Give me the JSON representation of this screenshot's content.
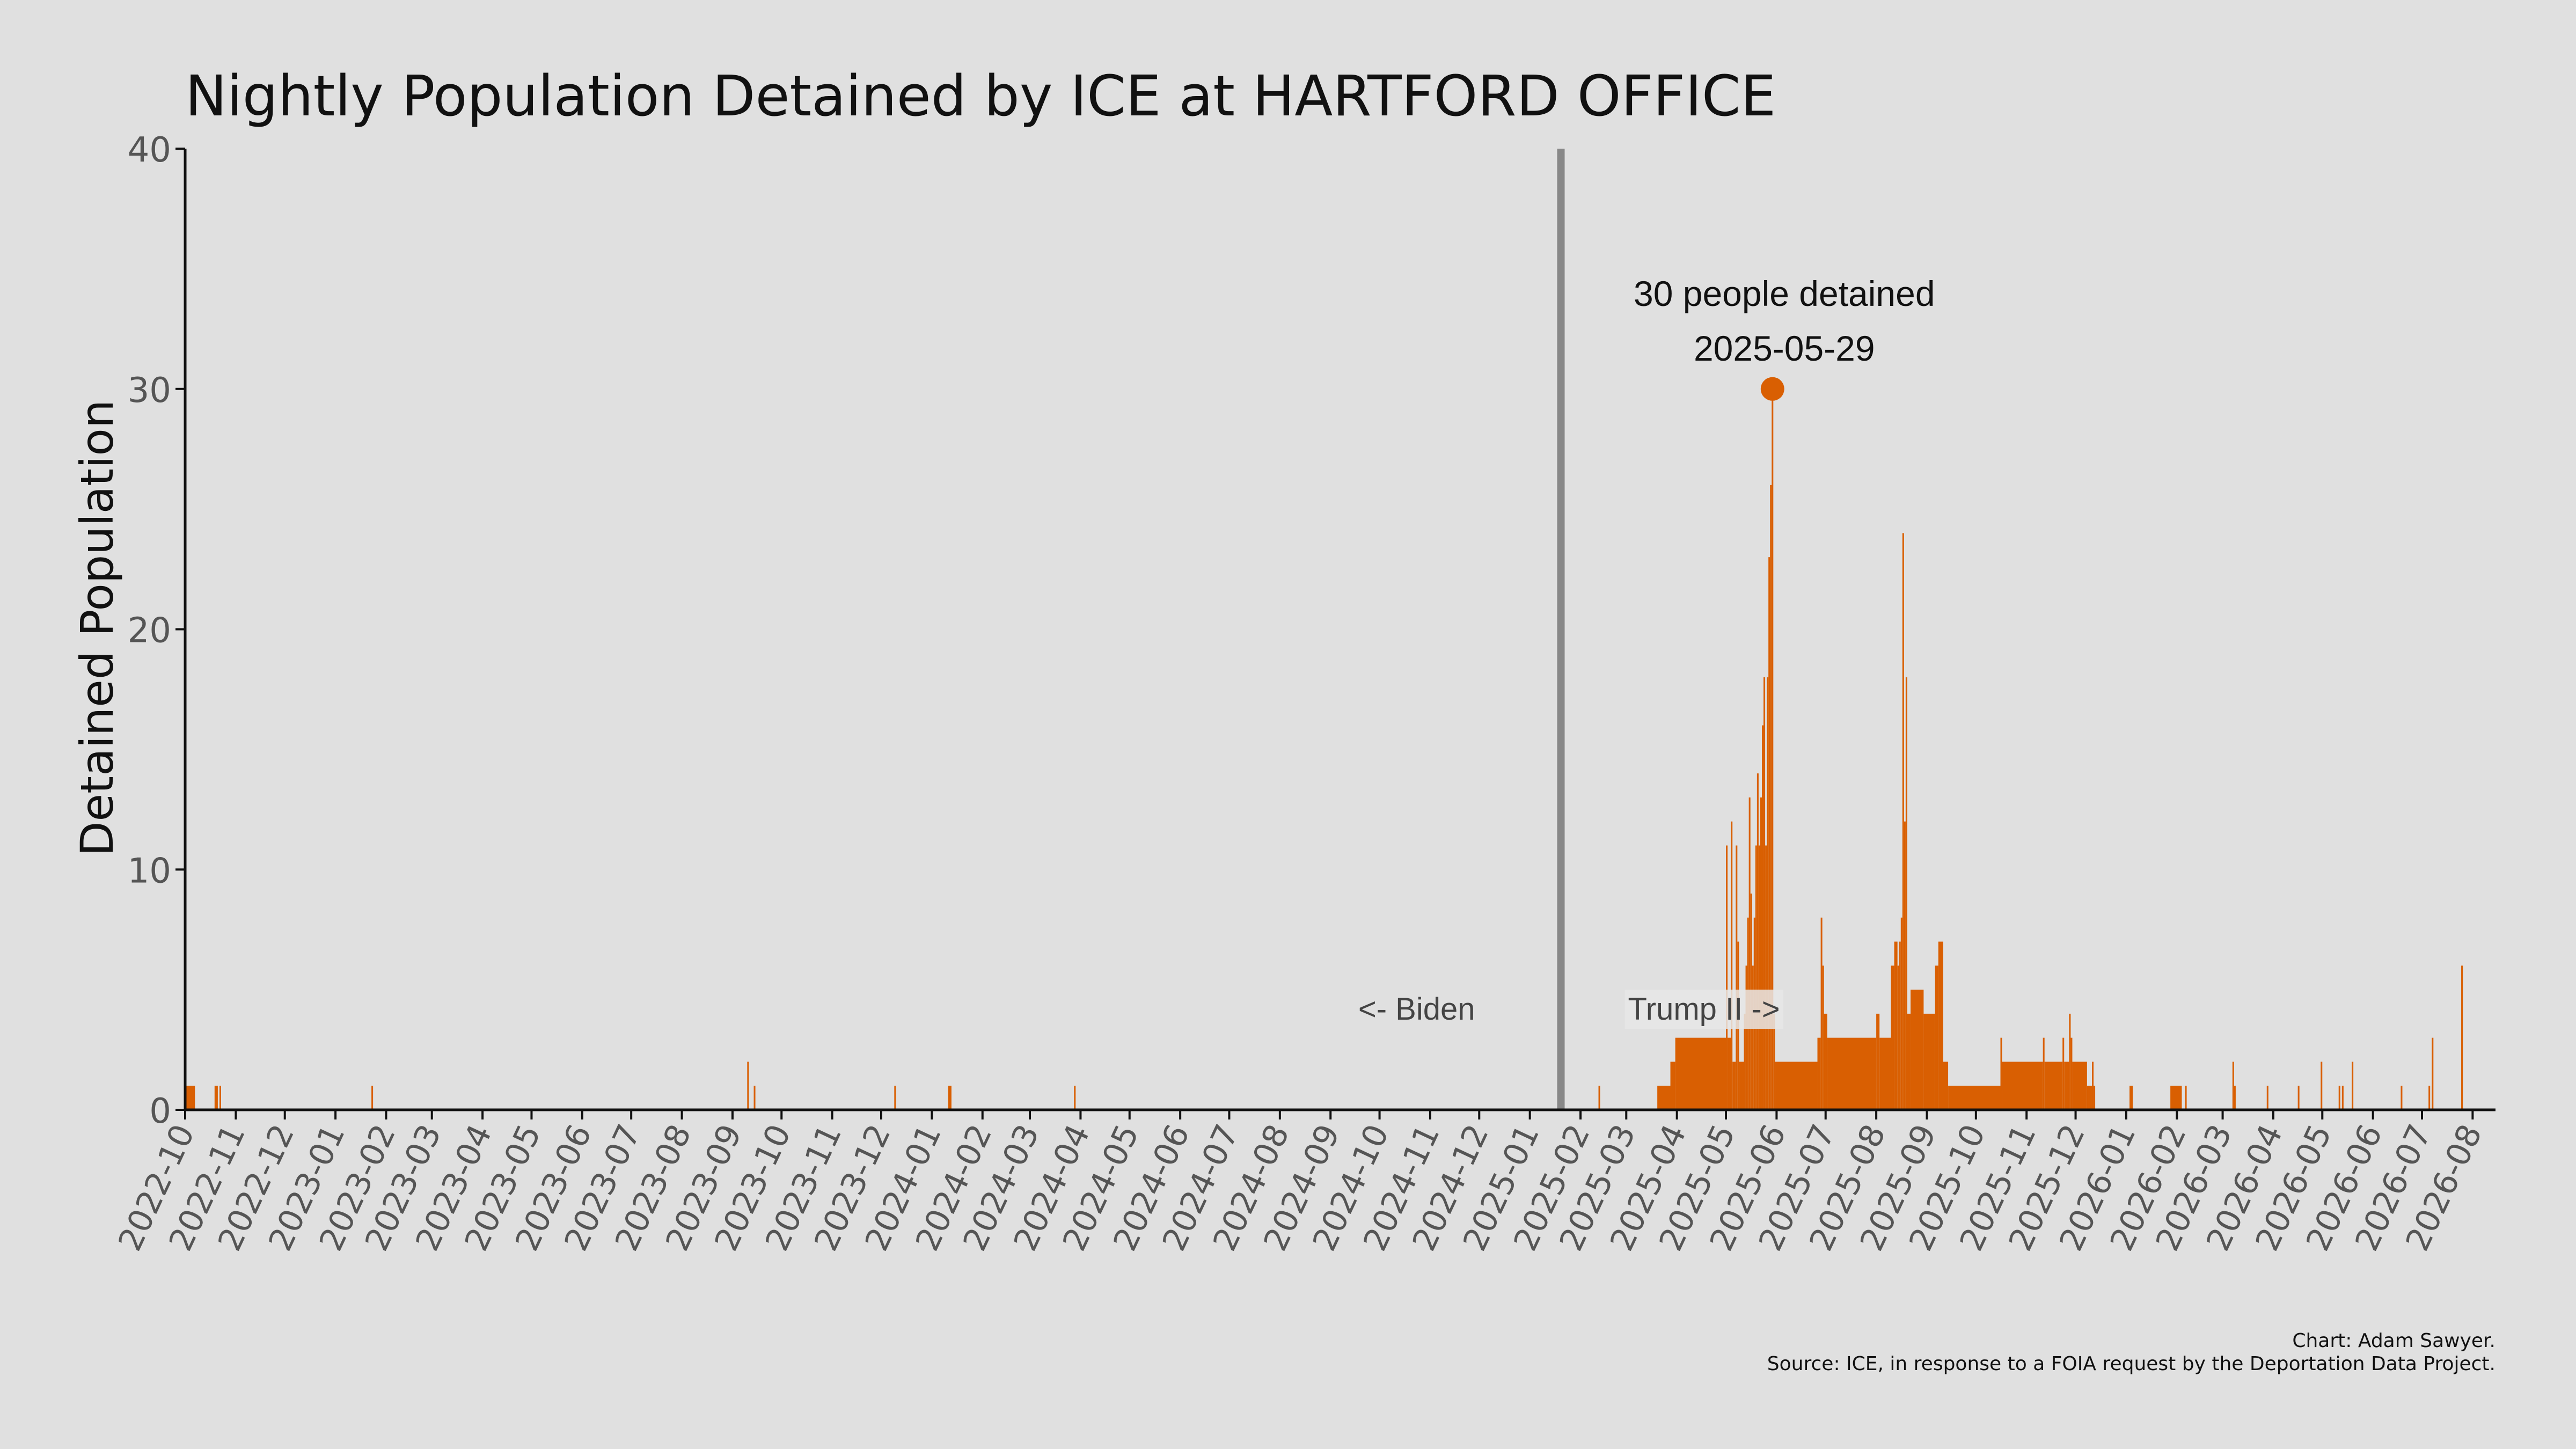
{
  "chart_data": {
    "type": "bar",
    "title": "Nightly Population Detained by ICE at HARTFORD OFFICE",
    "xlabel": "",
    "ylabel": "Detained Population",
    "ylim": [
      0,
      40
    ],
    "yticks": [
      "0",
      "10",
      "20",
      "30",
      "40"
    ],
    "xlim": [
      "2022-10-01",
      "2026-08-15"
    ],
    "xtick_labels": [
      "2022-10",
      "2022-11",
      "2022-12",
      "2023-01",
      "2023-02",
      "2023-03",
      "2023-04",
      "2023-05",
      "2023-06",
      "2023-07",
      "2023-08",
      "2023-09",
      "2023-10",
      "2023-11",
      "2023-12",
      "2024-01",
      "2024-02",
      "2024-03",
      "2024-04",
      "2024-05",
      "2024-06",
      "2024-07",
      "2024-08",
      "2024-09",
      "2024-10",
      "2024-11",
      "2024-12",
      "2025-01",
      "2025-02",
      "2025-03",
      "2025-04",
      "2025-05",
      "2025-06",
      "2025-07",
      "2025-08",
      "2025-09",
      "2025-10",
      "2025-11",
      "2025-12",
      "2026-01",
      "2026-02",
      "2026-03",
      "2026-04",
      "2026-05",
      "2026-06",
      "2026-07",
      "2026-08"
    ],
    "series": [
      {
        "color": "#d95f02",
        "segments": [
          {
            "start": "2022-10-01",
            "end": "2022-10-06",
            "value": 1
          },
          {
            "start": "2022-10-19",
            "end": "2022-10-20",
            "value": 1
          },
          {
            "start": "2022-10-22",
            "end": "2022-10-22",
            "value": 1
          },
          {
            "start": "2023-01-23",
            "end": "2023-01-23",
            "value": 1
          },
          {
            "start": "2023-09-10",
            "end": "2023-09-10",
            "value": 2
          },
          {
            "start": "2023-09-14",
            "end": "2023-09-14",
            "value": 1
          },
          {
            "start": "2023-12-09",
            "end": "2023-12-09",
            "value": 1
          },
          {
            "start": "2024-01-11",
            "end": "2024-01-12",
            "value": 1
          },
          {
            "start": "2024-03-28",
            "end": "2024-03-28",
            "value": 1
          },
          {
            "start": "2025-02-12",
            "end": "2025-02-12",
            "value": 1
          },
          {
            "start": "2025-03-20",
            "end": "2025-03-27",
            "value": 1
          },
          {
            "start": "2025-03-28",
            "end": "2025-03-30",
            "value": 2
          },
          {
            "start": "2025-03-31",
            "end": "2025-04-30",
            "value": 3
          },
          {
            "start": "2025-05-01",
            "end": "2025-05-01",
            "value": 11
          },
          {
            "start": "2025-05-02",
            "end": "2025-05-03",
            "value": 3
          },
          {
            "start": "2025-05-04",
            "end": "2025-05-04",
            "value": 12
          },
          {
            "start": "2025-05-05",
            "end": "2025-05-06",
            "value": 2
          },
          {
            "start": "2025-05-07",
            "end": "2025-05-07",
            "value": 11
          },
          {
            "start": "2025-05-08",
            "end": "2025-05-08",
            "value": 7
          },
          {
            "start": "2025-05-09",
            "end": "2025-05-11",
            "value": 2
          },
          {
            "start": "2025-05-12",
            "end": "2025-05-12",
            "value": 4
          },
          {
            "start": "2025-05-13",
            "end": "2025-05-13",
            "value": 6
          },
          {
            "start": "2025-05-14",
            "end": "2025-05-14",
            "value": 8
          },
          {
            "start": "2025-05-15",
            "end": "2025-05-15",
            "value": 13
          },
          {
            "start": "2025-05-16",
            "end": "2025-05-16",
            "value": 9
          },
          {
            "start": "2025-05-17",
            "end": "2025-05-17",
            "value": 6
          },
          {
            "start": "2025-05-18",
            "end": "2025-05-18",
            "value": 8
          },
          {
            "start": "2025-05-19",
            "end": "2025-05-19",
            "value": 11
          },
          {
            "start": "2025-05-20",
            "end": "2025-05-20",
            "value": 14
          },
          {
            "start": "2025-05-21",
            "end": "2025-05-21",
            "value": 11
          },
          {
            "start": "2025-05-22",
            "end": "2025-05-22",
            "value": 13
          },
          {
            "start": "2025-05-23",
            "end": "2025-05-23",
            "value": 16
          },
          {
            "start": "2025-05-24",
            "end": "2025-05-24",
            "value": 18
          },
          {
            "start": "2025-05-25",
            "end": "2025-05-25",
            "value": 11
          },
          {
            "start": "2025-05-26",
            "end": "2025-05-26",
            "value": 18
          },
          {
            "start": "2025-05-27",
            "end": "2025-05-27",
            "value": 23
          },
          {
            "start": "2025-05-28",
            "end": "2025-05-28",
            "value": 26
          },
          {
            "start": "2025-05-29",
            "end": "2025-05-29",
            "value": 30
          },
          {
            "start": "2025-05-30",
            "end": "2025-05-30",
            "value": 4
          },
          {
            "start": "2025-05-31",
            "end": "2025-06-25",
            "value": 2
          },
          {
            "start": "2025-06-26",
            "end": "2025-06-27",
            "value": 3
          },
          {
            "start": "2025-06-28",
            "end": "2025-06-28",
            "value": 8
          },
          {
            "start": "2025-06-29",
            "end": "2025-06-29",
            "value": 6
          },
          {
            "start": "2025-06-30",
            "end": "2025-07-01",
            "value": 4
          },
          {
            "start": "2025-07-02",
            "end": "2025-07-31",
            "value": 3
          },
          {
            "start": "2025-08-01",
            "end": "2025-08-02",
            "value": 4
          },
          {
            "start": "2025-08-03",
            "end": "2025-08-09",
            "value": 3
          },
          {
            "start": "2025-08-10",
            "end": "2025-08-11",
            "value": 6
          },
          {
            "start": "2025-08-12",
            "end": "2025-08-13",
            "value": 7
          },
          {
            "start": "2025-08-14",
            "end": "2025-08-14",
            "value": 6
          },
          {
            "start": "2025-08-15",
            "end": "2025-08-15",
            "value": 7
          },
          {
            "start": "2025-08-16",
            "end": "2025-08-16",
            "value": 8
          },
          {
            "start": "2025-08-17",
            "end": "2025-08-17",
            "value": 24
          },
          {
            "start": "2025-08-18",
            "end": "2025-08-18",
            "value": 12
          },
          {
            "start": "2025-08-19",
            "end": "2025-08-19",
            "value": 18
          },
          {
            "start": "2025-08-20",
            "end": "2025-08-21",
            "value": 4
          },
          {
            "start": "2025-08-22",
            "end": "2025-08-29",
            "value": 5
          },
          {
            "start": "2025-08-30",
            "end": "2025-09-05",
            "value": 4
          },
          {
            "start": "2025-09-06",
            "end": "2025-09-07",
            "value": 6
          },
          {
            "start": "2025-09-08",
            "end": "2025-09-10",
            "value": 7
          },
          {
            "start": "2025-09-11",
            "end": "2025-09-13",
            "value": 2
          },
          {
            "start": "2025-09-14",
            "end": "2025-10-15",
            "value": 1
          },
          {
            "start": "2025-10-16",
            "end": "2025-10-16",
            "value": 3
          },
          {
            "start": "2025-10-17",
            "end": "2025-11-10",
            "value": 2
          },
          {
            "start": "2025-11-11",
            "end": "2025-11-11",
            "value": 3
          },
          {
            "start": "2025-11-12",
            "end": "2025-11-22",
            "value": 2
          },
          {
            "start": "2025-11-23",
            "end": "2025-11-23",
            "value": 3
          },
          {
            "start": "2025-11-24",
            "end": "2025-11-26",
            "value": 2
          },
          {
            "start": "2025-11-27",
            "end": "2025-11-27",
            "value": 4
          },
          {
            "start": "2025-11-28",
            "end": "2025-11-28",
            "value": 3
          },
          {
            "start": "2025-11-29",
            "end": "2025-12-07",
            "value": 2
          },
          {
            "start": "2025-12-08",
            "end": "2025-12-10",
            "value": 1
          },
          {
            "start": "2025-12-11",
            "end": "2025-12-11",
            "value": 2
          },
          {
            "start": "2025-12-12",
            "end": "2025-12-12",
            "value": 1
          },
          {
            "start": "2026-01-03",
            "end": "2026-01-04",
            "value": 1
          },
          {
            "start": "2026-01-28",
            "end": "2026-02-03",
            "value": 1
          },
          {
            "start": "2026-02-06",
            "end": "2026-02-06",
            "value": 1
          },
          {
            "start": "2026-03-07",
            "end": "2026-03-07",
            "value": 2
          },
          {
            "start": "2026-03-08",
            "end": "2026-03-08",
            "value": 1
          },
          {
            "start": "2026-03-28",
            "end": "2026-03-28",
            "value": 1
          },
          {
            "start": "2026-04-16",
            "end": "2026-04-16",
            "value": 1
          },
          {
            "start": "2026-04-30",
            "end": "2026-04-30",
            "value": 2
          },
          {
            "start": "2026-05-11",
            "end": "2026-05-11",
            "value": 1
          },
          {
            "start": "2026-05-13",
            "end": "2026-05-13",
            "value": 1
          },
          {
            "start": "2026-05-19",
            "end": "2026-05-19",
            "value": 2
          },
          {
            "start": "2026-06-18",
            "end": "2026-06-18",
            "value": 1
          },
          {
            "start": "2026-07-05",
            "end": "2026-07-05",
            "value": 1
          },
          {
            "start": "2026-07-07",
            "end": "2026-07-07",
            "value": 3
          },
          {
            "start": "2026-07-25",
            "end": "2026-07-25",
            "value": 6
          }
        ]
      }
    ],
    "reference_line": {
      "date": "2025-01-20",
      "color": "#888888"
    },
    "era_labels": {
      "left": "<- Biden",
      "right": "Trump II ->"
    },
    "peak": {
      "date": "2025-05-29",
      "value": 30,
      "label_line1": "30 people detained",
      "label_line2": "2025-05-29"
    },
    "grid": false,
    "legend": "none"
  },
  "credit": "Chart: Adam Sawyer.",
  "source": "Source: ICE, in response to a FOIA request by the Deportation Data Project."
}
